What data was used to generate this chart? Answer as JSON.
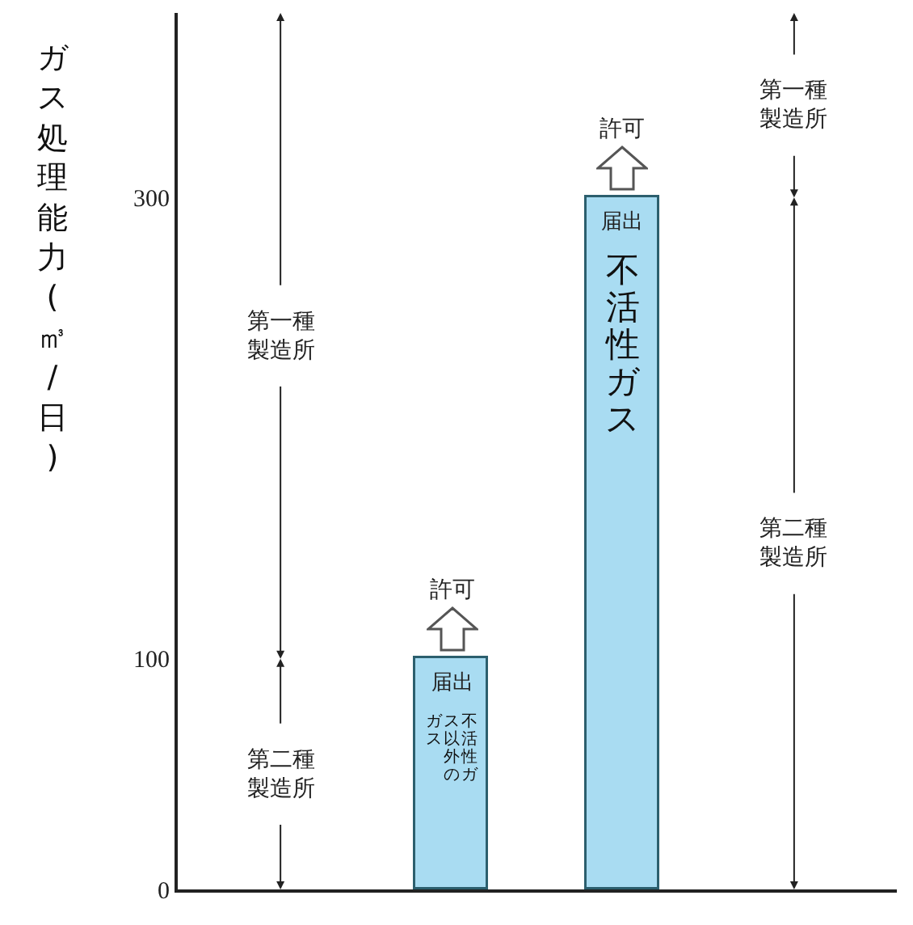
{
  "chart_data": {
    "type": "bar",
    "ylabel": "ガス処理能力(㎥/日)",
    "categories": [
      null,
      null,
      null,
      null
    ],
    "values": [
      null,
      100,
      300,
      null
    ],
    "color": "#a9dcf2",
    "ylim": [
      0,
      380
    ],
    "yticks": [
      0,
      100,
      300
    ],
    "grid": false,
    "annotations": [
      "第一種製造所",
      "第二種製造所",
      "第一種製造所",
      "第二種製造所",
      "許可",
      "届出",
      "不活性ガス以外のガス",
      "許可",
      "届出",
      "不活性ガス"
    ]
  }
}
